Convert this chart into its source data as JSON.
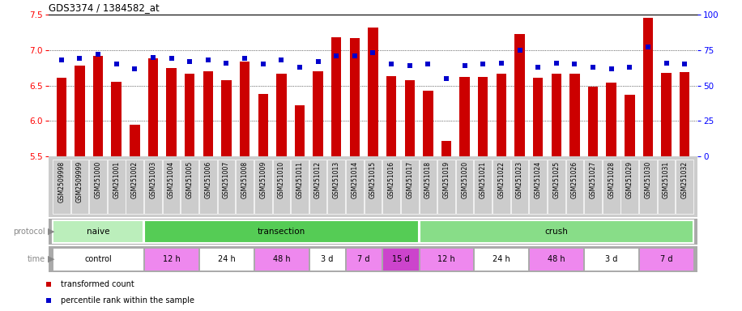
{
  "title": "GDS3374 / 1384582_at",
  "samples": [
    "GSM2509998",
    "GSM2509999",
    "GSM251000",
    "GSM251001",
    "GSM251002",
    "GSM251003",
    "GSM251004",
    "GSM251005",
    "GSM251006",
    "GSM251007",
    "GSM251008",
    "GSM251009",
    "GSM251010",
    "GSM251011",
    "GSM251012",
    "GSM251013",
    "GSM251014",
    "GSM251015",
    "GSM251016",
    "GSM251017",
    "GSM251018",
    "GSM251019",
    "GSM251020",
    "GSM251021",
    "GSM251022",
    "GSM251023",
    "GSM251024",
    "GSM251025",
    "GSM251026",
    "GSM251027",
    "GSM251028",
    "GSM251029",
    "GSM251030",
    "GSM251031",
    "GSM251032"
  ],
  "transformed_count": [
    6.61,
    6.78,
    6.92,
    6.55,
    5.95,
    6.88,
    6.75,
    6.67,
    6.7,
    6.57,
    6.84,
    6.38,
    6.67,
    6.22,
    6.7,
    7.18,
    7.17,
    7.32,
    6.63,
    6.57,
    6.43,
    5.72,
    6.62,
    6.62,
    6.66,
    7.23,
    6.61,
    6.67,
    6.66,
    6.48,
    6.54,
    6.37,
    7.45,
    6.68,
    6.69
  ],
  "percentile_rank": [
    68,
    69,
    72,
    65,
    62,
    70,
    69,
    67,
    68,
    66,
    69,
    65,
    68,
    63,
    67,
    71,
    71,
    73,
    65,
    64,
    65,
    55,
    64,
    65,
    66,
    75,
    63,
    66,
    65,
    63,
    62,
    63,
    77,
    66,
    65
  ],
  "ylim_left": [
    5.5,
    7.5
  ],
  "ylim_right": [
    0,
    100
  ],
  "yticks_left": [
    5.5,
    6.0,
    6.5,
    7.0,
    7.5
  ],
  "yticks_right": [
    0,
    25,
    50,
    75,
    100
  ],
  "bar_color": "#cc0000",
  "dot_color": "#0000cc",
  "xtick_bg": "#cccccc",
  "protocol_groups": [
    {
      "label": "naive",
      "start": 0,
      "end": 4,
      "color": "#bbeebb"
    },
    {
      "label": "transection",
      "start": 5,
      "end": 19,
      "color": "#55cc55"
    },
    {
      "label": "crush",
      "start": 20,
      "end": 34,
      "color": "#88dd88"
    }
  ],
  "time_groups": [
    {
      "label": "control",
      "start": 0,
      "end": 4,
      "color": "#ffffff"
    },
    {
      "label": "12 h",
      "start": 5,
      "end": 7,
      "color": "#ee88ee"
    },
    {
      "label": "24 h",
      "start": 8,
      "end": 10,
      "color": "#ffffff"
    },
    {
      "label": "48 h",
      "start": 11,
      "end": 13,
      "color": "#ee88ee"
    },
    {
      "label": "3 d",
      "start": 14,
      "end": 15,
      "color": "#ffffff"
    },
    {
      "label": "7 d",
      "start": 16,
      "end": 17,
      "color": "#ee88ee"
    },
    {
      "label": "15 d",
      "start": 18,
      "end": 19,
      "color": "#cc44cc"
    },
    {
      "label": "12 h",
      "start": 20,
      "end": 22,
      "color": "#ee88ee"
    },
    {
      "label": "24 h",
      "start": 23,
      "end": 25,
      "color": "#ffffff"
    },
    {
      "label": "48 h",
      "start": 26,
      "end": 28,
      "color": "#ee88ee"
    },
    {
      "label": "3 d",
      "start": 29,
      "end": 31,
      "color": "#ffffff"
    },
    {
      "label": "7 d",
      "start": 32,
      "end": 34,
      "color": "#ee88ee"
    }
  ],
  "legend_items": [
    {
      "label": "transformed count",
      "color": "#cc0000"
    },
    {
      "label": "percentile rank within the sample",
      "color": "#0000cc"
    }
  ]
}
